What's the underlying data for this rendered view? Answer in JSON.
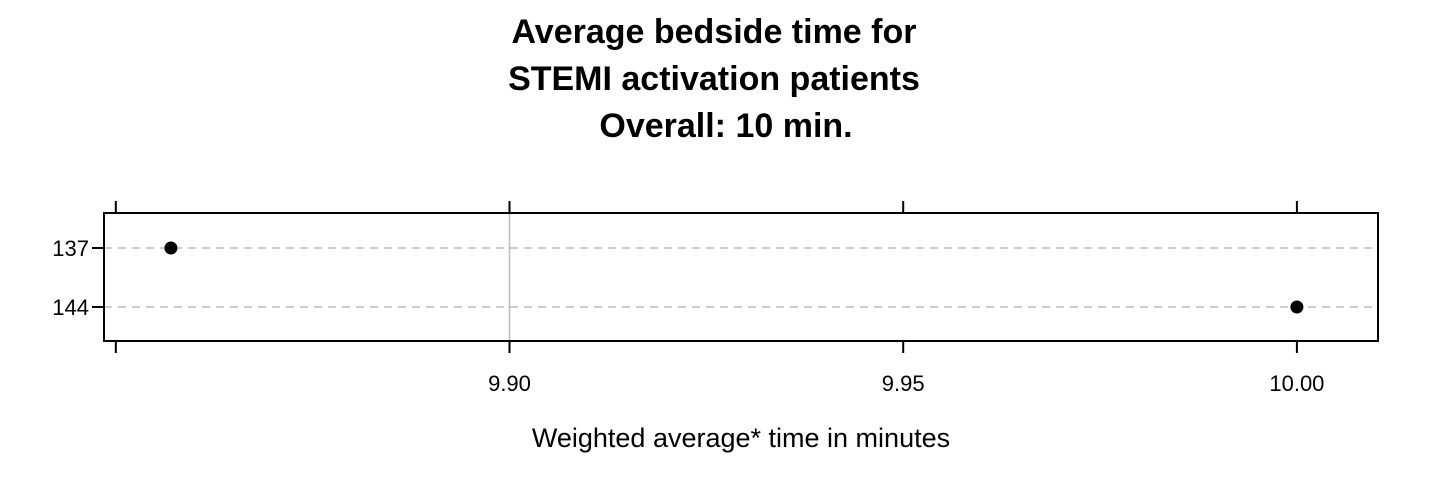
{
  "chart_data": {
    "type": "scatter",
    "title_lines": [
      "Average bedside time for",
      "STEMI activation patients",
      "Overall:  10 min."
    ],
    "xlabel": "Weighted average* time in minutes",
    "ylabel": "",
    "xlim": [
      9.8485,
      10.0103
    ],
    "x_ticks": [
      9.85,
      9.9,
      9.95,
      10.0
    ],
    "x_tick_labels": [
      "",
      "9.90",
      "9.95",
      "10.00"
    ],
    "reference_line_x": 9.9,
    "categories": [
      "137",
      "144"
    ],
    "points": [
      {
        "category": "137",
        "x": 9.857
      },
      {
        "category": "144",
        "x": 10.0
      }
    ],
    "grid": "dashed horizontal guides per category",
    "legend": "none",
    "colors": {
      "points": "#000000",
      "guides": "#bebebe",
      "reference_line": "#bebebe",
      "frame": "#000000"
    }
  }
}
